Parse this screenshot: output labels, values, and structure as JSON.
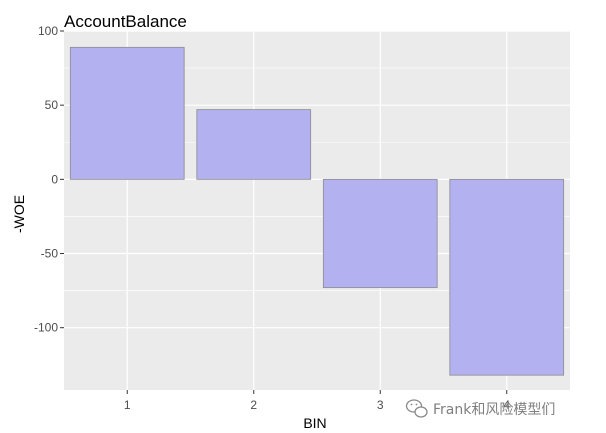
{
  "chart_data": {
    "type": "bar",
    "title": "AccountBalance",
    "xlabel": "BIN",
    "ylabel": "-WOE",
    "categories": [
      "1",
      "2",
      "3",
      "4"
    ],
    "values": [
      89,
      47,
      -73,
      -132
    ],
    "ylim": [
      -142,
      100
    ],
    "yticks": [
      100,
      50,
      0,
      -50,
      -100
    ],
    "grid": true,
    "bar_fill": "#b3b1ef",
    "bar_stroke": "#8c8c8c",
    "panel_background": "#ebebeb",
    "gridline_color": "#ffffff"
  },
  "watermark": {
    "icon": "wechat-icon",
    "text": "Frank和风险模型们"
  }
}
